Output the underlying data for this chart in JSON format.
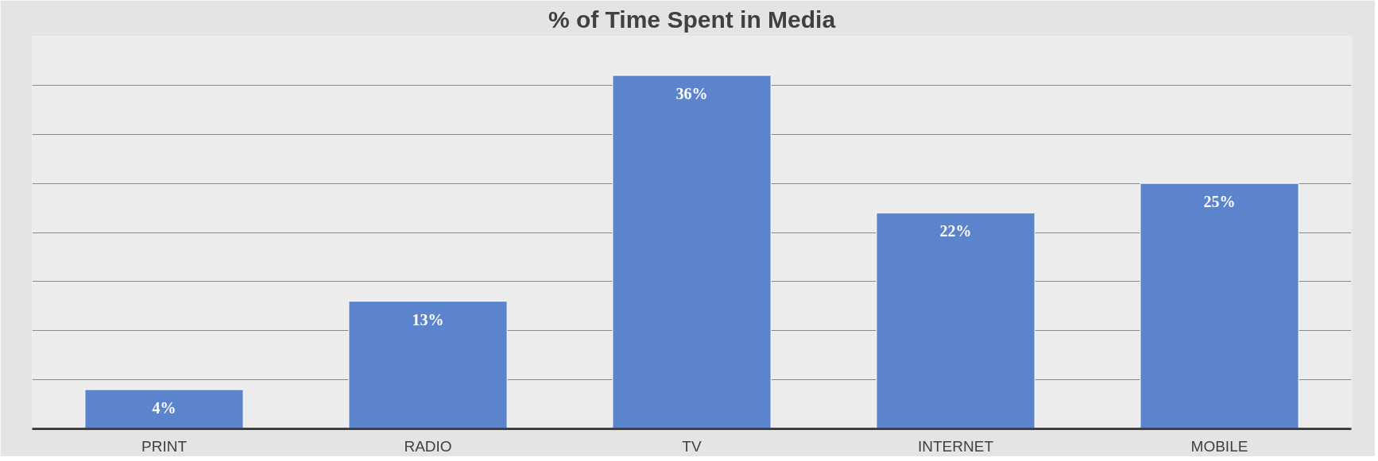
{
  "chart_data": {
    "type": "bar",
    "title": "% of Time Spent in Media",
    "categories": [
      "PRINT",
      "RADIO",
      "TV",
      "INTERNET",
      "MOBILE"
    ],
    "values": [
      4,
      13,
      36,
      22,
      25
    ],
    "color": "#5b84cc",
    "value_labels": [
      "4%",
      "13%",
      "36%",
      "22%",
      "25%"
    ],
    "ylim": [
      0,
      40
    ],
    "yticks": [
      {
        "value": 0,
        "label": null
      },
      {
        "value": 5,
        "label": null
      },
      {
        "value": 10,
        "label": null
      },
      {
        "value": 15,
        "label": null
      },
      {
        "value": 20,
        "label": null
      },
      {
        "value": 25,
        "label": null
      },
      {
        "value": 30,
        "label": null
      },
      {
        "value": 35,
        "label": null
      },
      {
        "value": 40,
        "label": null
      }
    ],
    "tick_labels": "x",
    "grid": "y"
  }
}
